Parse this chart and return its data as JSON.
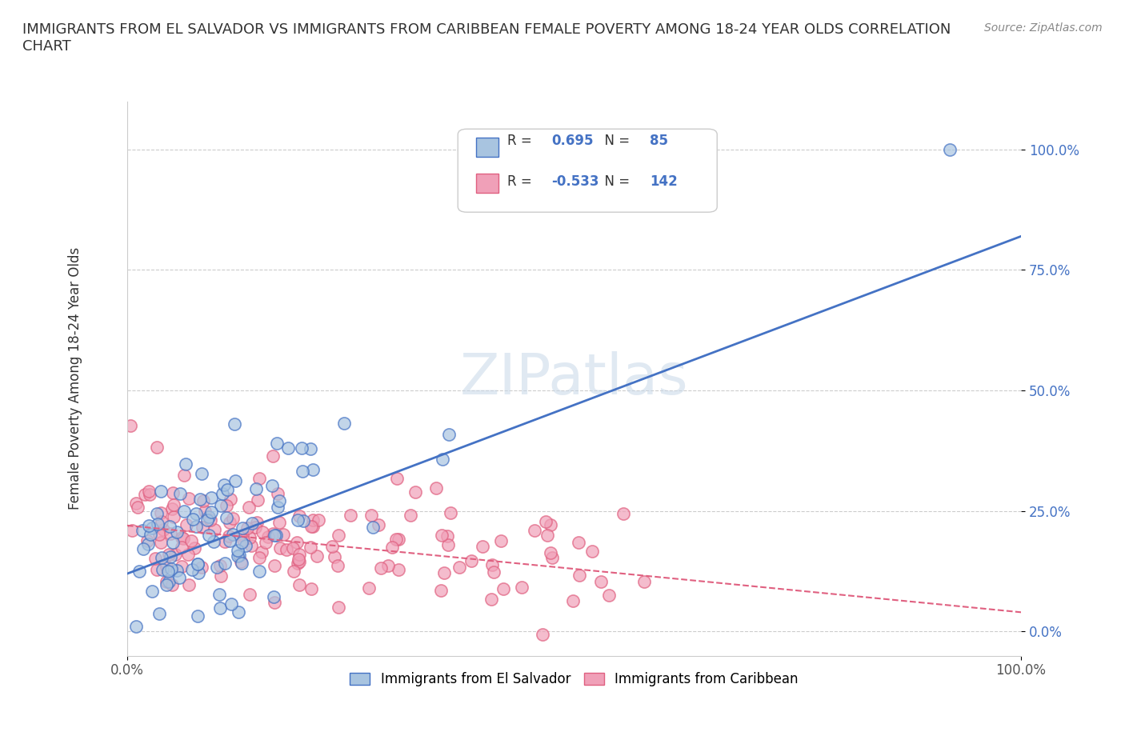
{
  "title": "IMMIGRANTS FROM EL SALVADOR VS IMMIGRANTS FROM CARIBBEAN FEMALE POVERTY AMONG 18-24 YEAR OLDS CORRELATION\nCHART",
  "source_text": "Source: ZipAtlas.com",
  "ylabel": "Female Poverty Among 18-24 Year Olds",
  "xlabel": "",
  "xlim": [
    0.0,
    1.0
  ],
  "ylim": [
    -0.05,
    1.1
  ],
  "yticks": [
    0.0,
    0.25,
    0.5,
    0.75,
    1.0
  ],
  "ytick_labels": [
    "0.0%",
    "25.0%",
    "50.0%",
    "75.0%",
    "100.0%"
  ],
  "xtick_labels": [
    "0.0%",
    "100.0%"
  ],
  "xticks": [
    0.0,
    1.0
  ],
  "watermark": "ZIPatlas",
  "legend_R1": "0.695",
  "legend_N1": "85",
  "legend_R2": "-0.533",
  "legend_N2": "142",
  "color_blue": "#a8c4e0",
  "color_pink": "#f0a0b8",
  "color_blue_line": "#4472c4",
  "color_pink_line": "#e06080",
  "series1_label": "Immigrants from El Salvador",
  "series2_label": "Immigrants from Caribbean",
  "blue_line_x": [
    0.0,
    1.0
  ],
  "blue_line_y": [
    0.12,
    0.82
  ],
  "pink_line_x": [
    0.0,
    1.0
  ],
  "pink_line_y": [
    0.22,
    0.04
  ],
  "background_color": "#ffffff",
  "grid_color": "#cccccc"
}
